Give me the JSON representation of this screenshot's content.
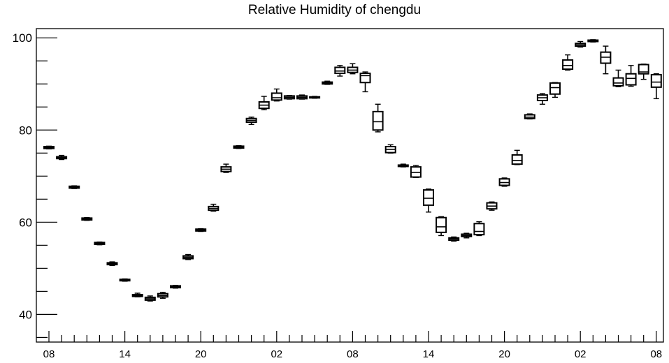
{
  "chart_data": {
    "type": "boxplot",
    "title": "Relative Humidity of chengdu",
    "xlabel": "",
    "ylabel": "",
    "ylim": [
      34,
      102
    ],
    "y_ticks": [
      40,
      60,
      80,
      100
    ],
    "x_tick_labels": [
      "08",
      "14",
      "20",
      "02",
      "08",
      "14",
      "20",
      "02",
      "08"
    ],
    "x_tick_hour_index": [
      0,
      6,
      12,
      18,
      24,
      30,
      36,
      42,
      48
    ],
    "grid": false,
    "legend": "none",
    "colors": {
      "box": "#000000",
      "axis": "#000000",
      "background": "#ffffff"
    },
    "boxes": [
      {
        "hour": 0,
        "q1": 76.0,
        "median": 76.2,
        "q3": 76.4,
        "min": 75.9,
        "max": 76.5
      },
      {
        "hour": 1,
        "q1": 73.8,
        "median": 74.0,
        "q3": 74.2,
        "min": 73.6,
        "max": 74.5
      },
      {
        "hour": 2,
        "q1": 67.4,
        "median": 67.6,
        "q3": 67.8,
        "min": 67.3,
        "max": 67.9
      },
      {
        "hour": 3,
        "q1": 60.5,
        "median": 60.7,
        "q3": 60.9,
        "min": 60.4,
        "max": 61.0
      },
      {
        "hour": 4,
        "q1": 55.2,
        "median": 55.4,
        "q3": 55.6,
        "min": 55.1,
        "max": 55.7
      },
      {
        "hour": 5,
        "q1": 50.8,
        "median": 51.0,
        "q3": 51.2,
        "min": 50.6,
        "max": 51.4
      },
      {
        "hour": 6,
        "q1": 47.3,
        "median": 47.5,
        "q3": 47.6,
        "min": 47.2,
        "max": 47.7
      },
      {
        "hour": 7,
        "q1": 43.9,
        "median": 44.1,
        "q3": 44.3,
        "min": 43.8,
        "max": 44.6
      },
      {
        "hour": 8,
        "q1": 43.1,
        "median": 43.4,
        "q3": 43.7,
        "min": 42.9,
        "max": 44.0
      },
      {
        "hour": 9,
        "q1": 43.8,
        "median": 44.1,
        "q3": 44.5,
        "min": 43.5,
        "max": 44.8
      },
      {
        "hour": 10,
        "q1": 45.8,
        "median": 46.0,
        "q3": 46.2,
        "min": 45.7,
        "max": 46.3
      },
      {
        "hour": 11,
        "q1": 52.1,
        "median": 52.4,
        "q3": 52.7,
        "min": 51.9,
        "max": 53.0
      },
      {
        "hour": 12,
        "q1": 58.1,
        "median": 58.3,
        "q3": 58.5,
        "min": 58.0,
        "max": 58.6
      },
      {
        "hour": 13,
        "q1": 62.6,
        "median": 63.0,
        "q3": 63.4,
        "min": 62.4,
        "max": 63.9
      },
      {
        "hour": 14,
        "q1": 71.0,
        "median": 71.5,
        "q3": 72.0,
        "min": 70.8,
        "max": 72.6
      },
      {
        "hour": 15,
        "q1": 76.1,
        "median": 76.3,
        "q3": 76.5,
        "min": 76.0,
        "max": 76.6
      },
      {
        "hour": 16,
        "q1": 81.7,
        "median": 82.1,
        "q3": 82.5,
        "min": 81.2,
        "max": 82.8
      },
      {
        "hour": 17,
        "q1": 84.7,
        "median": 85.4,
        "q3": 86.1,
        "min": 84.4,
        "max": 87.3
      },
      {
        "hour": 18,
        "q1": 86.5,
        "median": 87.0,
        "q3": 88.0,
        "min": 86.3,
        "max": 88.9
      },
      {
        "hour": 19,
        "q1": 86.8,
        "median": 87.1,
        "q3": 87.4,
        "min": 86.7,
        "max": 87.5
      },
      {
        "hour": 20,
        "q1": 86.8,
        "median": 87.1,
        "q3": 87.4,
        "min": 86.7,
        "max": 87.6
      },
      {
        "hour": 21,
        "q1": 87.0,
        "median": 87.1,
        "q3": 87.2,
        "min": 86.9,
        "max": 87.3
      },
      {
        "hour": 22,
        "q1": 90.0,
        "median": 90.2,
        "q3": 90.4,
        "min": 89.9,
        "max": 90.6
      },
      {
        "hour": 23,
        "q1": 92.3,
        "median": 92.8,
        "q3": 93.6,
        "min": 91.7,
        "max": 94.0
      },
      {
        "hour": 24,
        "q1": 92.5,
        "median": 93.0,
        "q3": 93.6,
        "min": 92.2,
        "max": 94.4
      },
      {
        "hour": 25,
        "q1": 90.3,
        "median": 91.8,
        "q3": 92.3,
        "min": 88.3,
        "max": 92.6
      },
      {
        "hour": 26,
        "q1": 80.0,
        "median": 81.8,
        "q3": 84.0,
        "min": 79.6,
        "max": 85.6
      },
      {
        "hour": 27,
        "q1": 75.1,
        "median": 75.8,
        "q3": 76.4,
        "min": 75.0,
        "max": 76.8
      },
      {
        "hour": 28,
        "q1": 72.1,
        "median": 72.3,
        "q3": 72.4,
        "min": 72.0,
        "max": 72.6
      },
      {
        "hour": 29,
        "q1": 69.8,
        "median": 70.8,
        "q3": 72.0,
        "min": 69.7,
        "max": 72.3
      },
      {
        "hour": 30,
        "q1": 63.7,
        "median": 65.2,
        "q3": 67.0,
        "min": 62.2,
        "max": 67.2
      },
      {
        "hour": 31,
        "q1": 57.8,
        "median": 59.0,
        "q3": 61.0,
        "min": 57.1,
        "max": 61.2
      },
      {
        "hour": 32,
        "q1": 56.1,
        "median": 56.4,
        "q3": 56.6,
        "min": 55.9,
        "max": 56.8
      },
      {
        "hour": 33,
        "q1": 56.9,
        "median": 57.1,
        "q3": 57.4,
        "min": 56.6,
        "max": 57.6
      },
      {
        "hour": 34,
        "q1": 57.3,
        "median": 58.0,
        "q3": 59.7,
        "min": 57.1,
        "max": 60.1
      },
      {
        "hour": 35,
        "q1": 62.9,
        "median": 63.5,
        "q3": 64.2,
        "min": 62.6,
        "max": 64.4
      },
      {
        "hour": 36,
        "q1": 68.0,
        "median": 68.6,
        "q3": 69.4,
        "min": 67.8,
        "max": 69.6
      },
      {
        "hour": 37,
        "q1": 72.6,
        "median": 73.4,
        "q3": 74.6,
        "min": 72.5,
        "max": 75.6
      },
      {
        "hour": 38,
        "q1": 82.5,
        "median": 82.8,
        "q3": 83.3,
        "min": 82.4,
        "max": 83.5
      },
      {
        "hour": 39,
        "q1": 86.4,
        "median": 87.0,
        "q3": 87.6,
        "min": 85.6,
        "max": 87.9
      },
      {
        "hour": 40,
        "q1": 87.8,
        "median": 89.2,
        "q3": 90.2,
        "min": 87.1,
        "max": 90.3
      },
      {
        "hour": 41,
        "q1": 93.2,
        "median": 94.0,
        "q3": 95.2,
        "min": 93.0,
        "max": 96.3
      },
      {
        "hour": 42,
        "q1": 98.2,
        "median": 98.5,
        "q3": 98.8,
        "min": 98.0,
        "max": 99.2
      },
      {
        "hour": 43,
        "q1": 99.2,
        "median": 99.3,
        "q3": 99.5,
        "min": 99.1,
        "max": 99.6
      },
      {
        "hour": 44,
        "q1": 94.5,
        "median": 95.8,
        "q3": 96.9,
        "min": 92.2,
        "max": 98.2
      },
      {
        "hour": 45,
        "q1": 89.6,
        "median": 90.2,
        "q3": 91.3,
        "min": 89.4,
        "max": 93.0
      },
      {
        "hour": 46,
        "q1": 89.8,
        "median": 91.2,
        "q3": 92.2,
        "min": 89.5,
        "max": 94.0
      },
      {
        "hour": 47,
        "q1": 92.2,
        "median": 92.6,
        "q3": 94.2,
        "min": 91.0,
        "max": 94.3
      },
      {
        "hour": 48,
        "q1": 89.3,
        "median": 90.4,
        "q3": 92.0,
        "min": 86.8,
        "max": 92.2
      }
    ]
  }
}
